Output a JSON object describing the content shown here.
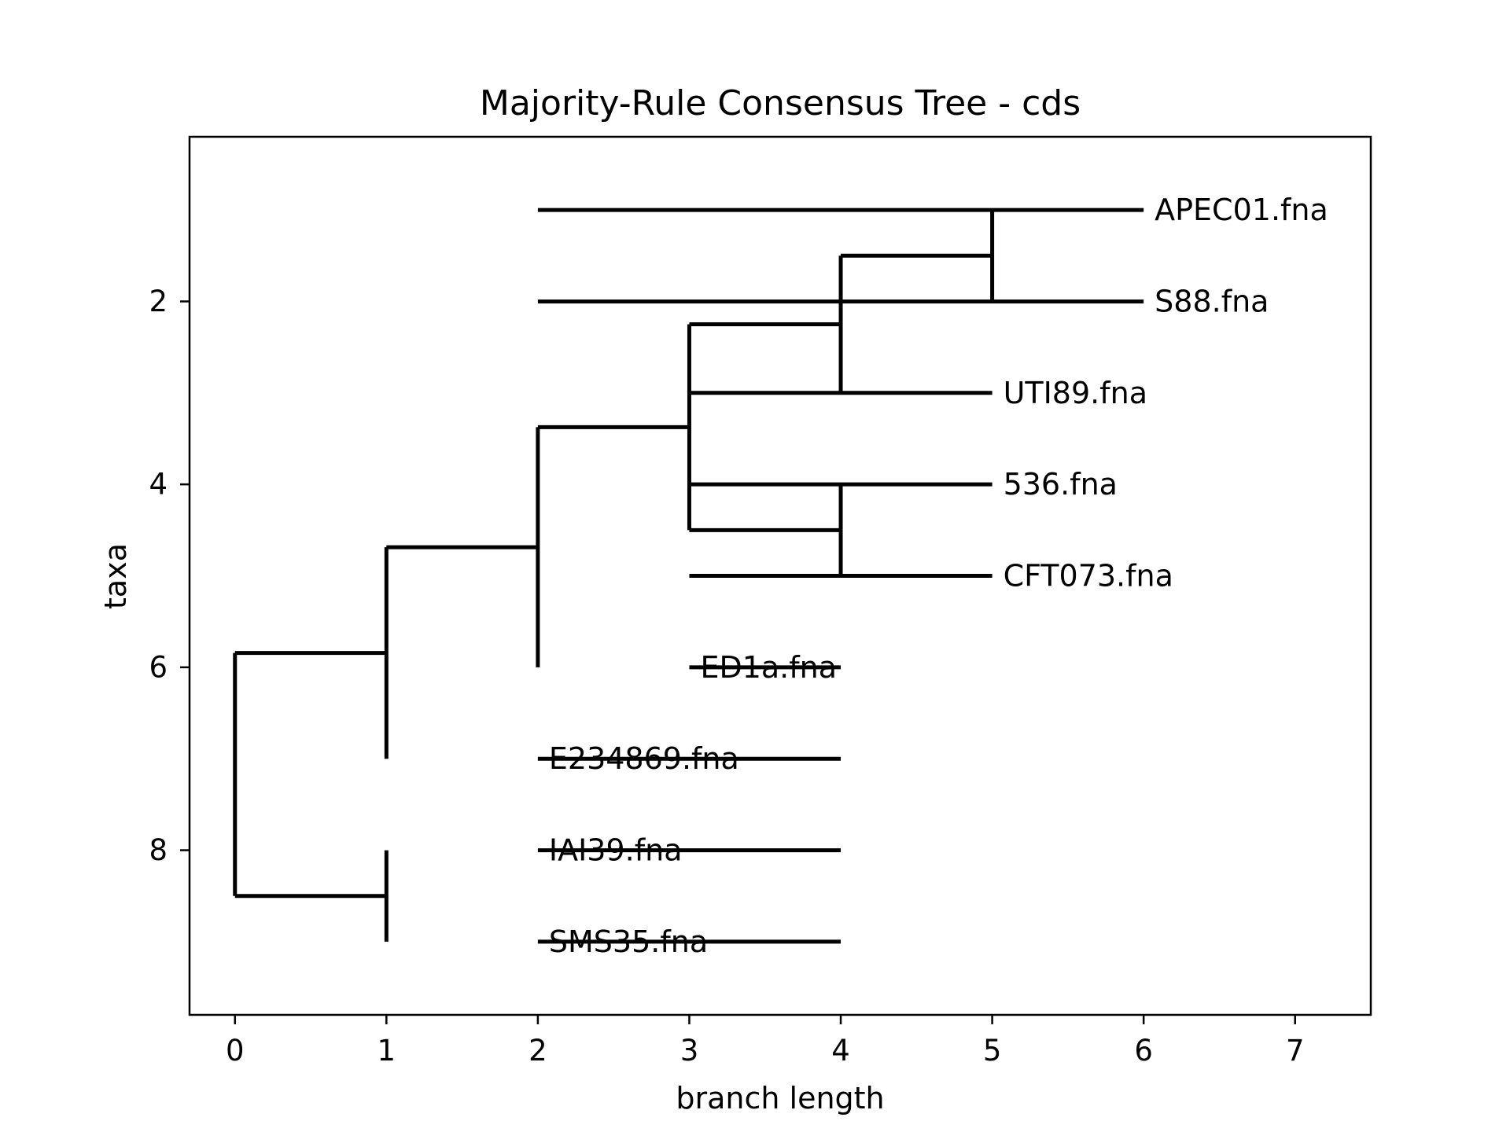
{
  "chart_data": {
    "type": "tree",
    "title": "Majority-Rule Consensus Tree - cds",
    "xlabel": "branch length",
    "ylabel": "taxa",
    "xlim": [
      -0.3,
      7.5
    ],
    "ylim": [
      9.8,
      0.2
    ],
    "x_ticks": [
      0,
      1,
      2,
      3,
      4,
      5,
      6,
      7
    ],
    "y_ticks": [
      2,
      4,
      6,
      8
    ],
    "grid": false,
    "line_color": "#000000",
    "leaves": [
      {
        "name": "APEC01.fna",
        "x": 6,
        "y": 1
      },
      {
        "name": "S88.fna",
        "x": 6,
        "y": 2
      },
      {
        "name": "UTI89.fna",
        "x": 5,
        "y": 3
      },
      {
        "name": "536.fna",
        "x": 5,
        "y": 4
      },
      {
        "name": "CFT073.fna",
        "x": 5,
        "y": 5
      },
      {
        "name": "ED1a.fna",
        "x": 3,
        "y": 6
      },
      {
        "name": "E234869.fna",
        "x": 2,
        "y": 7
      },
      {
        "name": "IAI39.fna",
        "x": 2,
        "y": 8
      },
      {
        "name": "SMS35.fna",
        "x": 2,
        "y": 9
      }
    ],
    "clades": [
      {
        "x": 5,
        "y_top": 1,
        "y_bottom": 2,
        "y": 1.5,
        "parent_x": 4
      },
      {
        "x": 4,
        "y_top": 1.5,
        "y_bottom": 3,
        "y": 2.25,
        "parent_x": 3
      },
      {
        "x": 4,
        "y_top": 4,
        "y_bottom": 5,
        "y": 4.5,
        "parent_x": 3
      },
      {
        "x": 3,
        "y_top": 2.25,
        "y_bottom": 4.5,
        "y": 3.375,
        "parent_x": 2
      },
      {
        "x": 2,
        "y_top": 3.375,
        "y_bottom": 6,
        "y": 4.6875,
        "parent_x": 1
      },
      {
        "x": 1,
        "y_top": 4.6875,
        "y_bottom": 7,
        "y": 5.84375,
        "parent_x": 0
      },
      {
        "x": 1,
        "y_top": 8,
        "y_bottom": 9,
        "y": 8.5,
        "parent_x": 0
      },
      {
        "x": 0,
        "y_top": 5.84375,
        "y_bottom": 8.5,
        "y": 7.171875,
        "parent_x": null
      }
    ],
    "leaf_parents": [
      4,
      4,
      3,
      3,
      3,
      2,
      1,
      1,
      1
    ]
  }
}
